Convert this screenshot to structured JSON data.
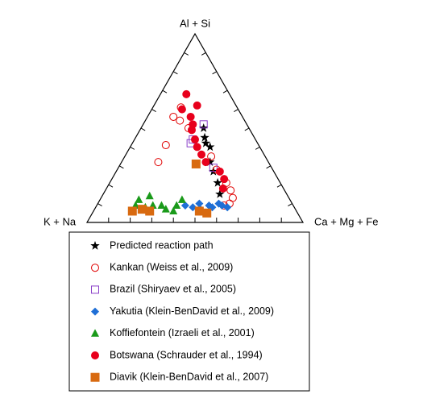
{
  "chart_data": {
    "type": "ternary",
    "top_label": "Al + Si",
    "left_label": "K + Na",
    "right_label": "Ca + Mg + Fe",
    "ticks": [
      10,
      20,
      30,
      40,
      50,
      60,
      70,
      80,
      90
    ],
    "series": [
      {
        "name": "Predicted reaction path",
        "color": "#000000",
        "marker": "star",
        "top": [
          50,
          45,
          42,
          40,
          32,
          27,
          21,
          15
        ],
        "right": [
          29,
          32,
          34,
          37,
          41,
          45,
          50,
          54
        ]
      },
      {
        "name": "Kankan (Weiss et al., 2009)",
        "color": "#e00000",
        "marker": "circle-open",
        "top": [
          61,
          56,
          54,
          50,
          41,
          32,
          35,
          28,
          21,
          17,
          13,
          10,
          9
        ],
        "right": [
          13,
          12,
          16,
          22,
          16,
          17,
          40,
          46,
          54,
          58,
          61,
          61,
          59
        ]
      },
      {
        "name": "Brazil (Shiryaev et al., 2005)",
        "color": "#8a3fc8",
        "marker": "square-open",
        "top": [
          52,
          42,
          44,
          29
        ],
        "right": [
          28,
          27,
          27,
          44
        ]
      },
      {
        "name": "Yakutia (Klein-BenDavid et al., 2009)",
        "color": "#1f6fd6",
        "marker": "diamond",
        "top": [
          9,
          8,
          10,
          7,
          9,
          8,
          10,
          9,
          8
        ],
        "right": [
          41,
          45,
          47,
          49,
          52,
          54,
          56,
          58,
          61
        ]
      },
      {
        "name": "Koffiefontein (Izraeli et al., 2001)",
        "color": "#1a9a1a",
        "marker": "triangle",
        "top": [
          9,
          12,
          14,
          9,
          9,
          7,
          6,
          9,
          12,
          8
        ],
        "right": [
          18,
          18,
          22,
          26,
          30,
          33,
          37,
          37,
          38,
          23
        ]
      },
      {
        "name": "Botswana (Schrauder et al., 1994)",
        "color": "#e8001c",
        "marker": "circle",
        "top": [
          68,
          62,
          60,
          56,
          52,
          49,
          44,
          40,
          36,
          32,
          27,
          23,
          18
        ],
        "right": [
          12,
          20,
          14,
          20,
          23,
          24,
          28,
          31,
          35,
          39,
          48,
          52,
          54
        ]
      },
      {
        "name": "Diavik (Klein-BenDavid et al., 2007)",
        "color": "#d86a10",
        "marker": "square",
        "top": [
          6,
          7,
          6,
          6,
          5,
          31
        ],
        "right": [
          18,
          22,
          26,
          49,
          53,
          35
        ]
      }
    ]
  }
}
